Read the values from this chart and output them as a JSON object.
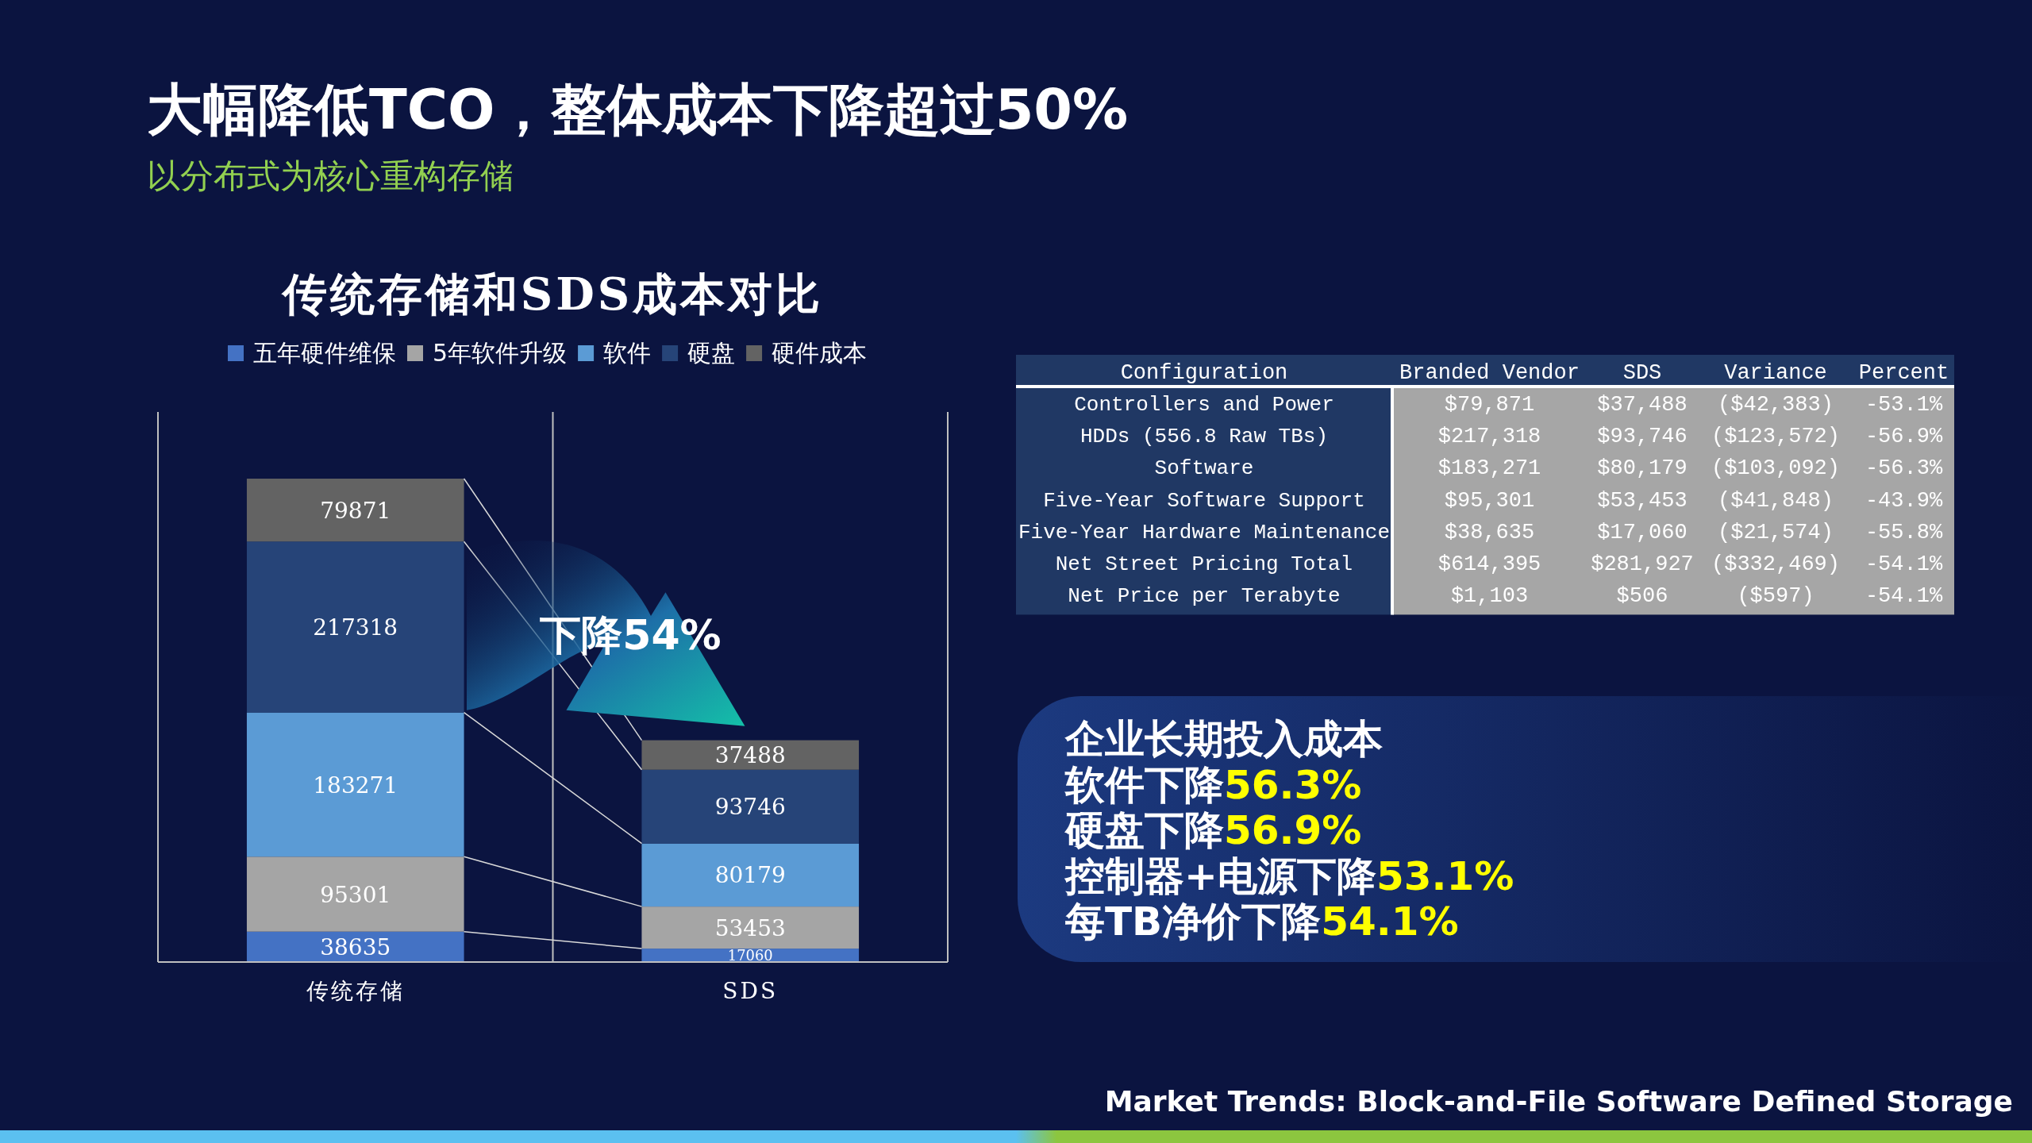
{
  "chart_data": [
    {
      "type": "other",
      "title": "大幅降低TCO，整体成本下降超过50%",
      "subtitle": "以分布式为核心重构存储",
      "annotations": [
        "Market Trends: Block-and-File Software Defined Storage"
      ]
    },
    {
      "type": "bar",
      "stacked": true,
      "title": "传统存储和SDS成本对比",
      "categories": [
        "传统存储",
        "SDS"
      ],
      "data_labels": true,
      "legend": "top",
      "annotations": [
        "下降54%"
      ],
      "series": [
        {
          "name": "五年硬件维保",
          "color": "#4472c4",
          "values": [
            38635,
            17060
          ]
        },
        {
          "name": "5年软件升级",
          "color": "#a5a5a5",
          "values": [
            95301,
            53453
          ]
        },
        {
          "name": "软件",
          "color": "#5b9bd5",
          "values": [
            183271,
            80179
          ]
        },
        {
          "name": "硬盘",
          "color": "#264478",
          "values": [
            217318,
            93746
          ]
        },
        {
          "name": "硬件成本",
          "color": "#636363",
          "values": [
            79871,
            37488
          ]
        }
      ]
    },
    {
      "type": "other",
      "annotations": [
        "Configuration",
        "Branded Vendor",
        "SDS",
        "Variance",
        "Percent",
        "Controllers and Power",
        "$79,871",
        "$37,488",
        "($42,383)",
        "-53.1%",
        "HDDs (556.8 Raw TBs)",
        "$217,318",
        "$93,746",
        "($123,572)",
        "-56.9%",
        "Software",
        "$183,271",
        "$80,179",
        "($103,092)",
        "-56.3%",
        "Five-Year Software Support",
        "$95,301",
        "$53,453",
        "($41,848)",
        "-43.9%",
        "Five-Year Hardware Maintenance",
        "$38,635",
        "$17,060",
        "($21,574)",
        "-55.8%",
        "Net Street Pricing Total",
        "$614,395",
        "$281,927",
        "($332,469)",
        "-54.1%",
        "Net Price per Terabyte",
        "$1,103",
        "$506",
        "($597)",
        "-54.1%"
      ]
    },
    {
      "type": "other",
      "annotations": [
        "企业长期投入成本",
        "软件下降56.3%",
        "硬盘下降56.9%",
        "控制器+电源下降53.1%",
        "每TB净价下降54.1%"
      ]
    }
  ]
}
